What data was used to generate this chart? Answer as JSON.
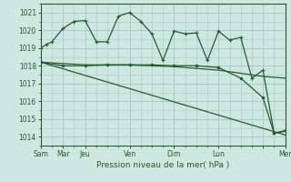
{
  "background_color": "#cce8e0",
  "grid_color": "#a8ccc8",
  "line_color": "#2a5a30",
  "title": "Pression niveau de la mer( hPa )",
  "ylim": [
    1013.5,
    1021.5
  ],
  "yticks": [
    1014,
    1015,
    1016,
    1017,
    1018,
    1019,
    1020,
    1021
  ],
  "day_positions": [
    0,
    2,
    4,
    8,
    12,
    16,
    20,
    22
  ],
  "day_labels": [
    "Sam",
    "Mar",
    "Jeu",
    "Ven",
    "Dim",
    "Lun",
    "",
    "Mer"
  ],
  "xlim": [
    0,
    22
  ],
  "series1_wavy": {
    "x": [
      0,
      0.5,
      1,
      2,
      3,
      4,
      5,
      6,
      7,
      8,
      9,
      10,
      11,
      12,
      13,
      14,
      15,
      16,
      17,
      18,
      19,
      20,
      21,
      22
    ],
    "y": [
      1019.0,
      1019.2,
      1019.35,
      1020.1,
      1020.5,
      1020.55,
      1019.35,
      1019.35,
      1020.8,
      1021.0,
      1020.5,
      1019.8,
      1018.3,
      1019.95,
      1019.8,
      1019.85,
      1018.3,
      1019.95,
      1019.45,
      1019.6,
      1017.3,
      1017.75,
      1014.2,
      1014.3
    ]
  },
  "series2_stepped": {
    "x": [
      0,
      2,
      4,
      6,
      8,
      10,
      12,
      14,
      16,
      18,
      20,
      21,
      22
    ],
    "y": [
      1018.2,
      1018.0,
      1018.0,
      1018.05,
      1018.05,
      1018.05,
      1018.0,
      1018.0,
      1017.9,
      1017.3,
      1016.2,
      1014.2,
      1014.35
    ]
  },
  "series3_smooth": {
    "x": [
      0,
      4,
      8,
      12,
      16,
      20,
      22
    ],
    "y": [
      1018.2,
      1018.05,
      1018.05,
      1017.95,
      1017.75,
      1017.4,
      1017.3
    ]
  },
  "series4_diagonal": {
    "x": [
      0,
      22
    ],
    "y": [
      1018.2,
      1014.1
    ]
  }
}
